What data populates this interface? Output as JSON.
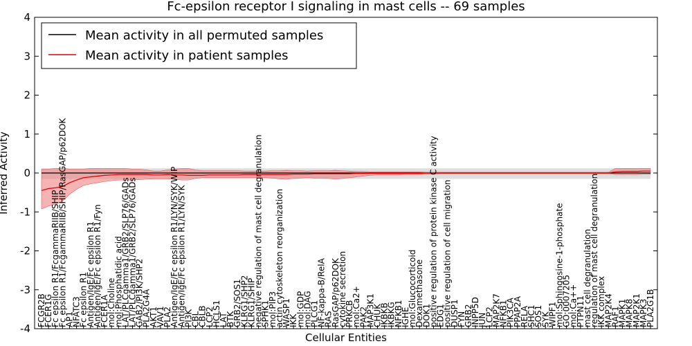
{
  "chart_data": {
    "type": "line",
    "title": "Fc-epsilon receptor I signaling in mast cells -- 69 samples",
    "xlabel": "Cellular Entities",
    "ylabel": "Inferred Activity",
    "ylim": [
      -4,
      4
    ],
    "yticks": [
      -4,
      -3,
      -2,
      -1,
      0,
      1,
      2,
      3,
      4
    ],
    "legend_location": "top-left",
    "grid": false,
    "colors": {
      "permuted": "#000000",
      "patient": "#dd0000",
      "patient_band": "#f08080",
      "permuted_band": "#c8c8c8"
    },
    "categories": [
      "FCGR2B",
      "FCER1G",
      "Fc epsilon R1/FcgammaRIIB/SHIP",
      "Fc epsilon R1/FcgammaRIIB/SHIP/RasGAP/p62DOK",
      "AP1",
      "NFATC3",
      "Fc epsilon R1",
      "Antigen/IgE/Fc epsilon R1",
      "Antigen/IgE/Fc epsilon R1/Fyn",
      "FCER1A",
      "mol:Choline",
      "mol:Phosphatidic acid",
      "LAT/PLCgamma1/GRB2/SLP76/GADs",
      "LAT/PLCgamma1/GRB2/SLP76/GADs",
      "GAB2/PI3K/SHP2",
      "PLA2G4A",
      "AKT1",
      "VAV1",
      "PLA2",
      "Antigen/IgE/Fc epsilon R1/LYN/SYK/WIP",
      "Antigen/IgE/Fc epsilon R1/LYN/SYK",
      "PI3K",
      "CBL",
      "CBLB",
      "LCP2",
      "HCLS1",
      "LAT",
      "BTK",
      "GRB2/SOS1",
      "KLRG1/SHP2",
      "KLRG1/SHIP",
      "negative regulation of mast cell degranulation",
      "SPHK1",
      "mol:PIP3",
      "actin cytoskeleton reorganization",
      "WASP1",
      "IKK",
      "mol:GDP",
      "mol:DAG",
      "PLCG1",
      "NF-kappa-B/RelA",
      "RAS",
      "RasGAP/p62DOK",
      "cytokine secretion",
      "PRKCB",
      "mol:Ca2+",
      "PAK2",
      "MAP3K1",
      "CHUK",
      "IKBKB",
      "IKBKG",
      "NFKB1",
      "IGHE",
      "mol:Glucocorticoid",
      "Dexamethasone",
      "DOK1",
      "positive regulation of protein kinase C activity",
      "EDG1",
      "positive regulation of cell migration",
      "DUSP1",
      "FYN",
      "GRB2",
      "INPP5D",
      "JUN",
      "LCP2",
      "MAP2K7",
      "NFKB1",
      "PIK3CA",
      "PPAP2A",
      "RELA",
      "SHC1",
      "SOS1",
      "SYK",
      "WIPF1",
      "mol:Sphingosine-1-phosphate",
      "GO:0007205",
      "mol:Ca++",
      "PTPN11",
      "mast cell degranulation",
      "regulation of mast cell degranulation",
      "IKK complex",
      "MAP2K4",
      "RAF1",
      "MAPK1",
      "MAPK8",
      "MAP2K1",
      "MAPK3",
      "PLA2G1B"
    ],
    "series": [
      {
        "name": "Mean activity in all permuted samples",
        "color": "#000000",
        "values": [
          0,
          0,
          0,
          0,
          0,
          0,
          0,
          0,
          0,
          0,
          0,
          0,
          0,
          0,
          0,
          0,
          0,
          0,
          0,
          0,
          0,
          0,
          0,
          0,
          0,
          0,
          0,
          0,
          0,
          0,
          0,
          0,
          0,
          0,
          0,
          0,
          0,
          0,
          0,
          0,
          0,
          0,
          0,
          0,
          0,
          0,
          0,
          0,
          0,
          0,
          0,
          0,
          0,
          0,
          0,
          0,
          0,
          0,
          0,
          0,
          0,
          0,
          0,
          0,
          0,
          0,
          0,
          0,
          0,
          0,
          0,
          0,
          0,
          0,
          0,
          0,
          0,
          0,
          0,
          0,
          0,
          0,
          0,
          0,
          0,
          0,
          0,
          0
        ],
        "band_upper": [
          0.12,
          0.12,
          0.12,
          0.12,
          0.12,
          0.12,
          0.12,
          0.12,
          0.12,
          0.12,
          0.12,
          0.12,
          0.12,
          0.12,
          0.12,
          0.12,
          0.12,
          0.12,
          0.12,
          0.12,
          0.12,
          0.12,
          0.12,
          0.12,
          0.12,
          0.12,
          0.12,
          0.12,
          0.12,
          0.12,
          0.12,
          0.12,
          0.12,
          0.12,
          0.12,
          0.12,
          0.12,
          0.12,
          0.12,
          0.12,
          0.12,
          0.12,
          0.12,
          0.12,
          0.12,
          0.12,
          0.12,
          0.12,
          0.12,
          0.12,
          0.12,
          0.12,
          0.12,
          0.12,
          0.12,
          0.12,
          0.12,
          0.12,
          0.12,
          0.12,
          0.12,
          0.12,
          0.12,
          0.12,
          0.12,
          0.12,
          0.12,
          0.12,
          0.12,
          0.12,
          0.12,
          0.12,
          0.12,
          0.12,
          0.12,
          0.12,
          0.12,
          0.12,
          0.12,
          0.12,
          0.12,
          0.12,
          0.12,
          0.12,
          0.12,
          0.12,
          0.12,
          0.12
        ],
        "band_lower": [
          -0.15,
          -0.15,
          -0.15,
          -0.15,
          -0.15,
          -0.15,
          -0.15,
          -0.15,
          -0.15,
          -0.15,
          -0.15,
          -0.15,
          -0.15,
          -0.15,
          -0.15,
          -0.15,
          -0.15,
          -0.15,
          -0.15,
          -0.15,
          -0.15,
          -0.15,
          -0.15,
          -0.15,
          -0.15,
          -0.15,
          -0.15,
          -0.15,
          -0.15,
          -0.15,
          -0.15,
          -0.15,
          -0.15,
          -0.15,
          -0.15,
          -0.15,
          -0.15,
          -0.15,
          -0.15,
          -0.15,
          -0.15,
          -0.15,
          -0.15,
          -0.15,
          -0.15,
          -0.15,
          -0.15,
          -0.15,
          -0.15,
          -0.15,
          -0.15,
          -0.15,
          -0.15,
          -0.15,
          -0.15,
          -0.15,
          -0.15,
          -0.15,
          -0.15,
          -0.15,
          -0.15,
          -0.15,
          -0.15,
          -0.15,
          -0.15,
          -0.15,
          -0.15,
          -0.15,
          -0.15,
          -0.15,
          -0.15,
          -0.15,
          -0.15,
          -0.15,
          -0.15,
          -0.15,
          -0.15,
          -0.15,
          -0.15,
          -0.15,
          -0.15,
          -0.15,
          -0.15,
          -0.15,
          -0.15,
          -0.15,
          -0.15,
          -0.15
        ]
      },
      {
        "name": "Mean activity in patient samples",
        "color": "#dd0000",
        "values": [
          -0.45,
          -0.4,
          -0.38,
          -0.35,
          -0.25,
          -0.18,
          -0.12,
          -0.1,
          -0.08,
          -0.06,
          -0.05,
          -0.04,
          -0.04,
          -0.04,
          -0.04,
          -0.04,
          -0.05,
          -0.05,
          -0.04,
          -0.05,
          -0.05,
          -0.06,
          -0.06,
          -0.06,
          -0.05,
          -0.05,
          -0.05,
          -0.05,
          -0.05,
          -0.04,
          -0.04,
          -0.04,
          -0.04,
          -0.04,
          -0.04,
          -0.04,
          -0.03,
          -0.03,
          -0.03,
          -0.02,
          -0.02,
          -0.02,
          -0.02,
          -0.02,
          -0.02,
          -0.01,
          -0.01,
          -0.01,
          -0.01,
          -0.01,
          -0.01,
          -0.01,
          -0.01,
          -0.01,
          -0.01,
          0,
          0,
          0,
          0,
          0,
          0,
          0,
          0,
          0,
          0,
          0,
          0,
          0,
          0,
          0,
          0,
          0,
          0,
          0,
          0,
          0,
          0,
          0,
          0,
          0,
          0,
          0,
          0.03,
          0.04,
          0.04,
          0.04,
          0.05,
          0.05
        ],
        "band_upper": [
          0.1,
          0.1,
          0.12,
          0.12,
          0.1,
          0.1,
          0.1,
          0.12,
          0.12,
          0.12,
          0.12,
          0.12,
          0.12,
          0.1,
          0.1,
          0.08,
          0.05,
          0.05,
          0.08,
          0.1,
          0.12,
          0.12,
          0.08,
          0.06,
          0.06,
          0.06,
          0.06,
          0.06,
          0.06,
          0.05,
          0.05,
          0.05,
          0.05,
          0.06,
          0.06,
          0.07,
          0.06,
          0.06,
          0.05,
          0.06,
          0.06,
          0.06,
          0.07,
          0.06,
          0.05,
          0.04,
          0.04,
          0.03,
          0.03,
          0.03,
          0.03,
          0.03,
          0.03,
          0.03,
          0.03,
          0.02,
          0.02,
          0.02,
          0.02,
          0.02,
          0.02,
          0.02,
          0.02,
          0.02,
          0.02,
          0.02,
          0.02,
          0.02,
          0.02,
          0.02,
          0.02,
          0.02,
          0.02,
          0.02,
          0.02,
          0.02,
          0.02,
          0.02,
          0.02,
          0.02,
          0.02,
          0.02,
          0.12,
          0.12,
          0.12,
          0.12,
          0.12,
          0.12
        ],
        "band_lower": [
          -0.92,
          -0.85,
          -0.8,
          -0.72,
          -0.55,
          -0.42,
          -0.32,
          -0.28,
          -0.25,
          -0.22,
          -0.2,
          -0.18,
          -0.18,
          -0.18,
          -0.17,
          -0.16,
          -0.15,
          -0.15,
          -0.15,
          -0.16,
          -0.18,
          -0.18,
          -0.14,
          -0.12,
          -0.12,
          -0.12,
          -0.12,
          -0.12,
          -0.12,
          -0.12,
          -0.12,
          -0.12,
          -0.12,
          -0.13,
          -0.15,
          -0.16,
          -0.14,
          -0.13,
          -0.12,
          -0.13,
          -0.13,
          -0.14,
          -0.16,
          -0.14,
          -0.12,
          -0.1,
          -0.08,
          -0.06,
          -0.05,
          -0.05,
          -0.05,
          -0.05,
          -0.04,
          -0.04,
          -0.04,
          -0.03,
          -0.03,
          -0.02,
          -0.02,
          -0.02,
          -0.02,
          -0.02,
          -0.02,
          -0.02,
          -0.02,
          -0.02,
          -0.02,
          -0.02,
          -0.02,
          -0.02,
          -0.02,
          -0.02,
          -0.02,
          -0.02,
          -0.02,
          -0.02,
          -0.02,
          -0.02,
          -0.02,
          -0.02,
          -0.02,
          -0.02,
          -0.04,
          -0.04,
          -0.04,
          -0.04,
          -0.03,
          -0.03
        ]
      }
    ]
  }
}
